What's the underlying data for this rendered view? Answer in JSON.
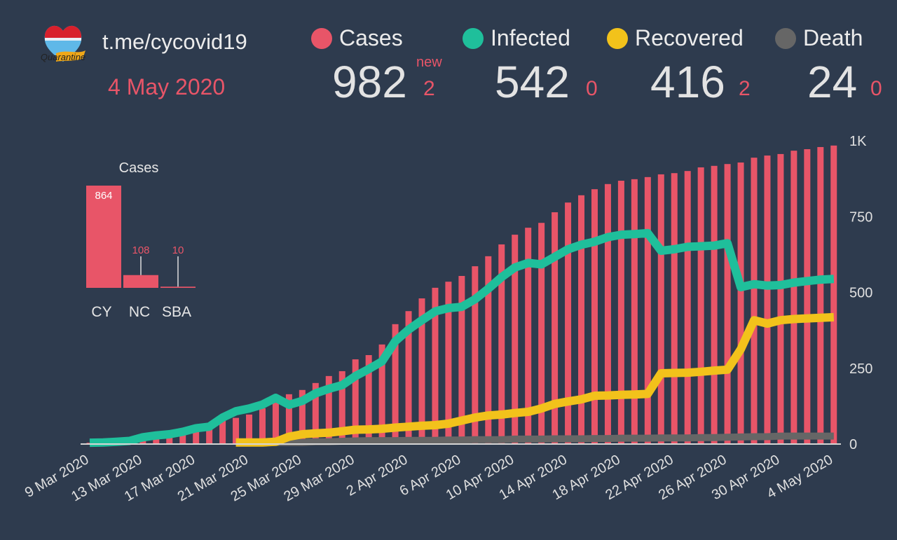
{
  "header": {
    "logo_text": "Quarantine",
    "site": "t.me/cycovid19",
    "date": "4 May 2020"
  },
  "stats": [
    {
      "label": "Cases",
      "value": "982",
      "delta": "2",
      "new_label": "new",
      "color": "#e85568"
    },
    {
      "label": "Infected",
      "value": "542",
      "delta": "0",
      "color": "#1fbf9b"
    },
    {
      "label": "Recovered",
      "value": "416",
      "delta": "2",
      "color": "#f2c21b"
    },
    {
      "label": "Death",
      "value": "24",
      "delta": "0",
      "color": "#666666"
    }
  ],
  "inset_chart": {
    "title": "Cases",
    "categories": [
      "CY",
      "NC",
      "SBA"
    ],
    "values": [
      864,
      108,
      10
    ],
    "value_labels": [
      "864",
      "108",
      "10"
    ]
  },
  "chart_data": {
    "type": "bar+line",
    "x_start": "9 Mar 2020",
    "x_end": "4 May 2020",
    "x_tick_labels": [
      "9 Mar 2020",
      "13 Mar 2020",
      "17 Mar 2020",
      "21 Mar 2020",
      "25 Mar 2020",
      "29 Mar 2020",
      "2 Apr 2020",
      "6 Apr 2020",
      "10 Apr 2020",
      "14 Apr 2020",
      "18 Apr 2020",
      "22 Apr 2020",
      "26 Apr 2020",
      "30 Apr 2020",
      "4 May 2020"
    ],
    "x_tick_every_days": 4,
    "y_tick_values": [
      0,
      250,
      500,
      750,
      1000
    ],
    "y_tick_labels": [
      "0",
      "250",
      "500",
      "750",
      "1K"
    ],
    "ylim": [
      0,
      1000
    ],
    "y_axis_side": "right",
    "series": [
      {
        "name": "Cases",
        "kind": "bar",
        "color": "#e85568",
        "values": [
          2,
          6,
          6,
          14,
          26,
          27,
          33,
          46,
          52,
          64,
          75,
          84,
          95,
          116,
          134,
          162,
          176,
          199,
          222,
          238,
          277,
          291,
          326,
          393,
          436,
          478,
          513,
          533,
          552,
          584,
          617,
          656,
          688,
          711,
          727,
          762,
          794,
          818,
          838,
          855,
          866,
          871,
          878,
          887,
          891,
          898,
          910,
          915,
          921,
          926,
          942,
          949,
          954,
          965,
          970,
          977,
          982
        ]
      },
      {
        "name": "Infected",
        "kind": "line",
        "color": "#1fbf9b",
        "values": [
          2,
          3,
          5,
          8,
          20,
          26,
          30,
          38,
          50,
          55,
          85,
          106,
          115,
          128,
          150,
          127,
          140,
          165,
          180,
          192,
          222,
          245,
          270,
          337,
          375,
          406,
          435,
          446,
          450,
          475,
          510,
          548,
          580,
          595,
          590,
          615,
          640,
          655,
          665,
          680,
          688,
          690,
          693,
          635,
          640,
          648,
          650,
          652,
          660,
          515,
          525,
          520,
          522,
          530,
          535,
          540,
          542
        ]
      },
      {
        "name": "Recovered",
        "kind": "line",
        "color": "#f2c21b",
        "values": [
          null,
          null,
          null,
          null,
          null,
          null,
          null,
          null,
          null,
          null,
          null,
          3,
          3,
          3,
          5,
          22,
          30,
          33,
          35,
          40,
          45,
          46,
          48,
          52,
          55,
          58,
          60,
          65,
          75,
          85,
          92,
          95,
          100,
          104,
          115,
          130,
          138,
          145,
          157,
          158,
          160,
          161,
          163,
          231,
          232,
          233,
          236,
          240,
          243,
          310,
          406,
          395,
          406,
          410,
          412,
          414,
          416
        ]
      },
      {
        "name": "Death",
        "kind": "line",
        "color": "#666666",
        "values": [
          null,
          null,
          null,
          null,
          null,
          null,
          null,
          null,
          null,
          null,
          null,
          1,
          1,
          2,
          3,
          3,
          3,
          5,
          5,
          7,
          8,
          9,
          9,
          9,
          10,
          10,
          10,
          11,
          11,
          12,
          12,
          12,
          14,
          14,
          14,
          15,
          15,
          15,
          16,
          16,
          17,
          17,
          17,
          18,
          18,
          18,
          19,
          19,
          20,
          21,
          22,
          22,
          24,
          24,
          24,
          24,
          24
        ]
      }
    ]
  }
}
